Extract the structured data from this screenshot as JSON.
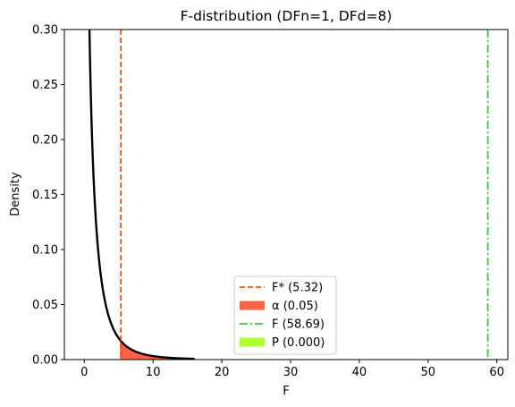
{
  "chart_data": {
    "type": "line",
    "title": "F-distribution (DFn=1, DFd=8)",
    "xlabel": "F",
    "ylabel": "Density",
    "xlim": [
      -2.9,
      61.6
    ],
    "ylim": [
      0,
      0.3
    ],
    "xticks": [
      0,
      10,
      20,
      30,
      40,
      50,
      60
    ],
    "yticks": [
      0.0,
      0.05,
      0.1,
      0.15,
      0.2,
      0.25,
      0.3
    ],
    "xtick_labels": [
      "0",
      "10",
      "20",
      "30",
      "40",
      "50",
      "60"
    ],
    "ytick_labels": [
      "0.00",
      "0.05",
      "0.10",
      "0.15",
      "0.20",
      "0.25",
      "0.30"
    ],
    "dfn": 1,
    "dfd": 8,
    "curve_range": [
      0.1,
      16
    ],
    "curve_color": "#000000",
    "critical_value": 5.32,
    "f_value": 58.69,
    "alpha": 0.05,
    "p_value": 0.0,
    "colors": {
      "critical": "#ff4500",
      "alpha_fill": "#ff6347",
      "f_line": "#32cd32",
      "p_fill": "#adff2f"
    },
    "legend": {
      "placement": "lower center",
      "entries": [
        {
          "label": "F* (5.32)",
          "kind": "dashed-line",
          "color": "#ff4500"
        },
        {
          "label": "α (0.05)",
          "kind": "patch",
          "color": "#ff6347"
        },
        {
          "label": "F (58.69)",
          "kind": "dashdot-line",
          "color": "#32cd32"
        },
        {
          "label": "P (0.000)",
          "kind": "patch",
          "color": "#adff2f"
        }
      ]
    },
    "grid": false
  }
}
